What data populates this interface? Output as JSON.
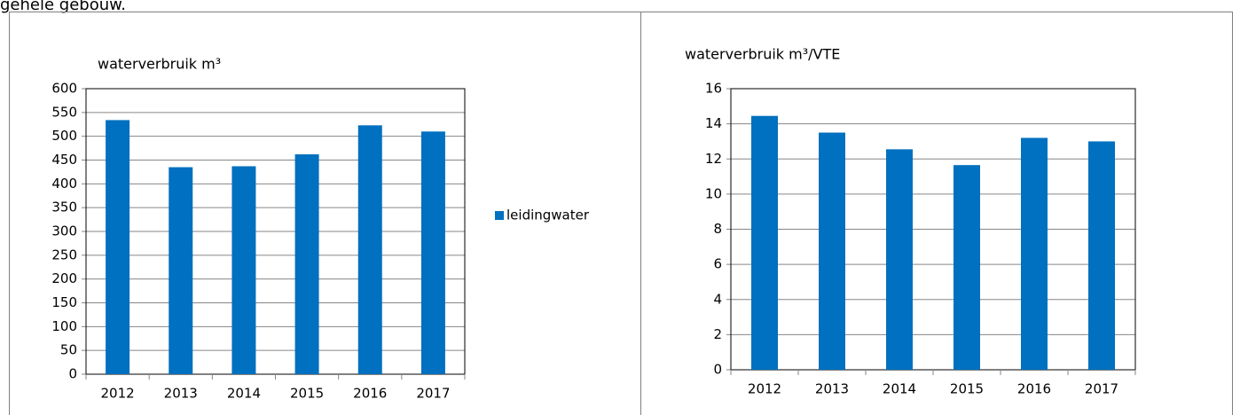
{
  "text": "gehele gebouw.",
  "chart_data": [
    {
      "type": "bar",
      "title": "waterverbruik m³",
      "categories": [
        "2012",
        "2013",
        "2014",
        "2015",
        "2016",
        "2017"
      ],
      "series": [
        {
          "name": "leidingwater",
          "color": "#0070c0",
          "values": [
            534,
            435,
            437,
            462,
            523,
            510
          ]
        }
      ],
      "ylim": [
        0,
        600
      ],
      "yticks": [
        0,
        50,
        100,
        150,
        200,
        250,
        300,
        350,
        400,
        450,
        500,
        550,
        600
      ],
      "grid": true,
      "legend": "right"
    },
    {
      "type": "bar",
      "title": "waterverbruik m³/VTE",
      "categories": [
        "2012",
        "2013",
        "2014",
        "2015",
        "2016",
        "2017"
      ],
      "values": [
        14.45,
        13.5,
        12.55,
        11.65,
        13.2,
        13.0
      ],
      "color": "#0070c0",
      "ylim": [
        0,
        16
      ],
      "yticks": [
        0,
        2,
        4,
        6,
        8,
        10,
        12,
        14,
        16
      ],
      "grid": true
    }
  ]
}
